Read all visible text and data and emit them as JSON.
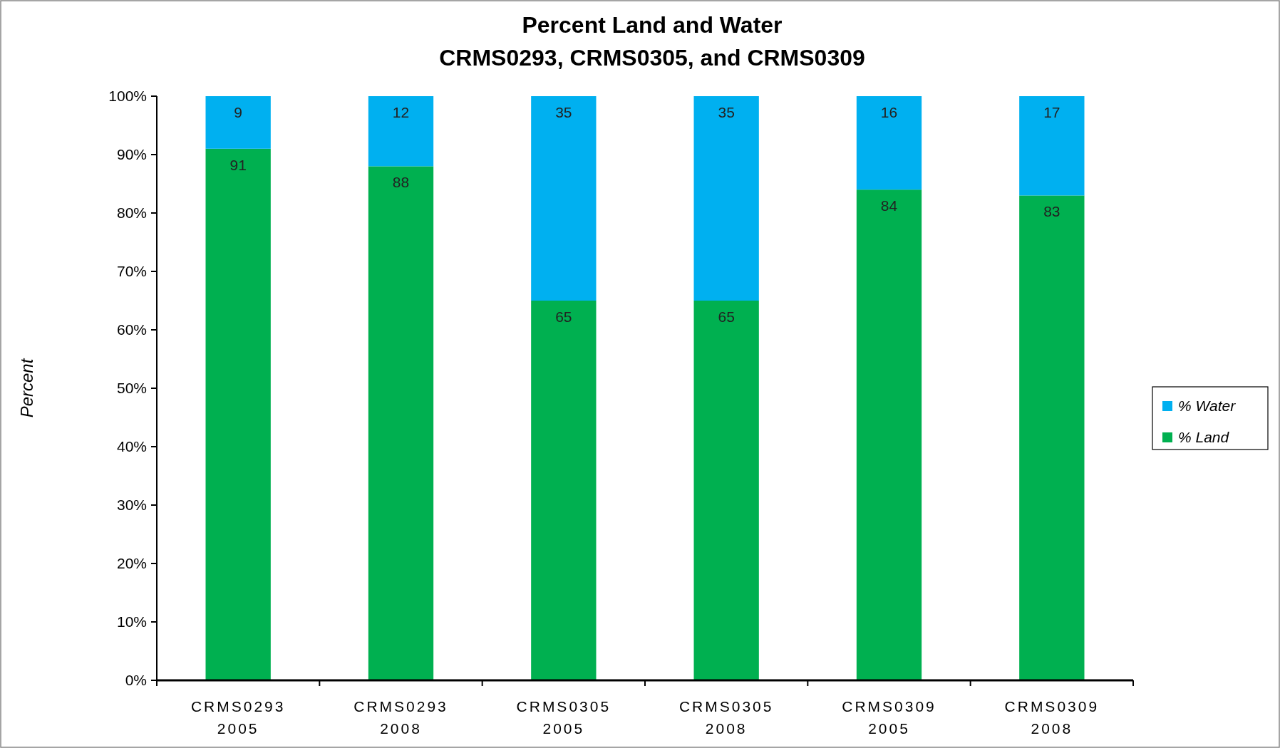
{
  "chart_data": {
    "type": "bar",
    "stacked": true,
    "title": "Percent Land and Water",
    "subtitle": "CRMS0293, CRMS0305, and CRMS0309",
    "ylabel": "Percent",
    "categories": [
      "CRMS0293\n2005",
      "CRMS0293\n2008",
      "CRMS0305\n2005",
      "CRMS0305\n2008",
      "CRMS0309\n2005",
      "CRMS0309\n2008"
    ],
    "series": [
      {
        "name": "% Land",
        "color": "#00b050",
        "values": [
          91,
          88,
          65,
          65,
          84,
          83
        ]
      },
      {
        "name": "% Water",
        "color": "#00b0f0",
        "values": [
          9,
          12,
          35,
          35,
          16,
          17
        ]
      }
    ],
    "ylim": [
      0,
      100
    ],
    "yticks": [
      {
        "value": 0,
        "label": "0%"
      },
      {
        "value": 10,
        "label": "10%"
      },
      {
        "value": 20,
        "label": "20%"
      },
      {
        "value": 30,
        "label": "30%"
      },
      {
        "value": 40,
        "label": "40%"
      },
      {
        "value": 50,
        "label": "50%"
      },
      {
        "value": 60,
        "label": "60%"
      },
      {
        "value": 70,
        "label": "70%"
      },
      {
        "value": 80,
        "label": "80%"
      },
      {
        "value": 90,
        "label": "90%"
      },
      {
        "value": 100,
        "label": "100%"
      }
    ],
    "data_labels": true,
    "legend": "right",
    "grid": false
  }
}
